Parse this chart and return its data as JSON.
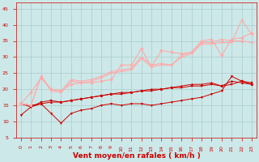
{
  "bg_color": "#cce8e8",
  "grid_color": "#aacccc",
  "xlabel": "Vent moyen/en rafales ( km/h )",
  "xlabel_color": "#cc0000",
  "xlabel_fontsize": 6.5,
  "ylabel_ticks": [
    5,
    10,
    15,
    20,
    25,
    30,
    35,
    40,
    45
  ],
  "xticks": [
    0,
    1,
    2,
    3,
    4,
    5,
    6,
    7,
    8,
    9,
    10,
    11,
    12,
    13,
    14,
    15,
    16,
    17,
    18,
    19,
    20,
    21,
    22,
    23
  ],
  "xlim": [
    -0.5,
    23.5
  ],
  "ylim": [
    5,
    47
  ],
  "tick_color": "#cc0000",
  "tick_fontsize": 4.5,
  "lines": [
    {
      "x": [
        0,
        1,
        2,
        3,
        4,
        5,
        6,
        7,
        8,
        9,
        10,
        11,
        12,
        13,
        14,
        15,
        16,
        17,
        18,
        19,
        20,
        21,
        22,
        23
      ],
      "y": [
        15.5,
        15.0,
        15.5,
        16.0,
        16.0,
        16.5,
        17.0,
        17.5,
        18.0,
        18.5,
        19.0,
        19.0,
        19.5,
        20.0,
        20.0,
        20.5,
        21.0,
        21.5,
        21.5,
        22.0,
        21.0,
        22.5,
        22.0,
        21.5
      ],
      "color": "#cc0000",
      "marker": "^",
      "lw": 0.7,
      "ms": 1.8,
      "alpha": 1.0
    },
    {
      "x": [
        0,
        1,
        2,
        3,
        4,
        5,
        6,
        7,
        8,
        9,
        10,
        11,
        12,
        13,
        14,
        15,
        16,
        17,
        18,
        19,
        20,
        21,
        22,
        23
      ],
      "y": [
        12.0,
        14.5,
        15.5,
        12.5,
        9.5,
        12.5,
        13.5,
        14.0,
        15.0,
        15.5,
        15.0,
        15.5,
        15.5,
        15.0,
        15.5,
        16.0,
        16.5,
        17.0,
        17.5,
        18.5,
        19.5,
        24.0,
        22.5,
        21.5
      ],
      "color": "#cc0000",
      "marker": "v",
      "lw": 0.7,
      "ms": 1.8,
      "alpha": 1.0
    },
    {
      "x": [
        0,
        1,
        2,
        3,
        4,
        5,
        6,
        7,
        8,
        9,
        10,
        11,
        12,
        13,
        14,
        15,
        16,
        17,
        18,
        19,
        20,
        21,
        22,
        23
      ],
      "y": [
        15.5,
        14.5,
        16.0,
        16.5,
        16.0,
        16.5,
        17.0,
        17.5,
        18.0,
        18.5,
        18.5,
        19.0,
        19.5,
        19.5,
        20.0,
        20.5,
        20.5,
        21.0,
        21.0,
        21.5,
        21.0,
        21.5,
        22.5,
        22.0
      ],
      "color": "#cc0000",
      "marker": "s",
      "lw": 0.7,
      "ms": 1.8,
      "alpha": 1.0
    },
    {
      "x": [
        0,
        1,
        2,
        3,
        4,
        5,
        6,
        7,
        8,
        9,
        10,
        11,
        12,
        13,
        14,
        15,
        16,
        17,
        18,
        19,
        20,
        21,
        22,
        23
      ],
      "y": [
        15.5,
        19.0,
        23.5,
        20.0,
        19.5,
        21.5,
        22.0,
        22.0,
        22.5,
        23.0,
        27.5,
        27.5,
        32.5,
        27.0,
        32.0,
        31.5,
        31.0,
        31.5,
        35.0,
        35.5,
        30.5,
        35.5,
        36.0,
        37.5
      ],
      "color": "#ffaaaa",
      "marker": "D",
      "lw": 0.8,
      "ms": 2.0,
      "alpha": 1.0
    },
    {
      "x": [
        0,
        1,
        2,
        3,
        4,
        5,
        6,
        7,
        8,
        9,
        10,
        11,
        12,
        13,
        14,
        15,
        16,
        17,
        18,
        19,
        20,
        21,
        22,
        23
      ],
      "y": [
        15.5,
        15.0,
        24.0,
        20.0,
        19.5,
        23.0,
        22.5,
        23.0,
        24.0,
        25.5,
        26.0,
        26.5,
        30.0,
        27.5,
        28.0,
        27.5,
        30.5,
        31.5,
        34.5,
        34.5,
        35.5,
        35.0,
        35.0,
        34.5
      ],
      "color": "#ffaaaa",
      "marker": "^",
      "lw": 0.8,
      "ms": 2.0,
      "alpha": 1.0
    },
    {
      "x": [
        0,
        1,
        2,
        3,
        4,
        5,
        6,
        7,
        8,
        9,
        10,
        11,
        12,
        13,
        14,
        15,
        16,
        17,
        18,
        19,
        20,
        21,
        22,
        23
      ],
      "y": [
        15.5,
        15.0,
        24.0,
        19.5,
        19.0,
        22.5,
        22.0,
        22.5,
        23.5,
        25.0,
        25.5,
        26.0,
        29.5,
        27.0,
        27.5,
        27.5,
        30.0,
        31.0,
        34.0,
        34.0,
        34.5,
        34.5,
        41.5,
        37.0
      ],
      "color": "#ffaaaa",
      "marker": "v",
      "lw": 0.8,
      "ms": 2.0,
      "alpha": 1.0
    }
  ]
}
